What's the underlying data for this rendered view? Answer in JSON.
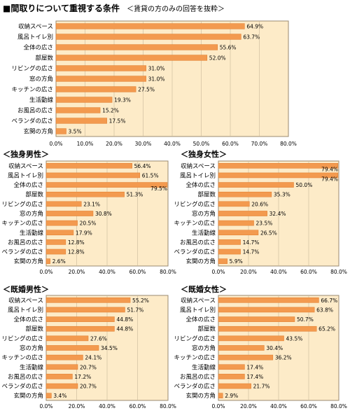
{
  "header": {
    "title": "■間取りについて重視する条件",
    "subtitle": "＜賃貸の方のみの回答を抜粋＞"
  },
  "colors": {
    "plot_background": "#fdebc8",
    "bar": "#f39a4f",
    "bar_stroke": "#e07a2a",
    "grid": "#c8b89a"
  },
  "chart_data": [
    {
      "type": "bar",
      "orientation": "horizontal",
      "title": "",
      "categories": [
        "収納スペース",
        "風呂トイレ別",
        "全体の広さ",
        "部屋数",
        "リビングの広さ",
        "窓の方角",
        "キッチンの広さ",
        "生活動線",
        "お風呂の広さ",
        "ベランダの広さ",
        "玄関の方角"
      ],
      "values": [
        64.9,
        63.7,
        55.6,
        52.0,
        31.0,
        31.0,
        27.5,
        19.3,
        15.2,
        17.5,
        3.5
      ],
      "value_labels": [
        "64.9%",
        "63.7%",
        "55.6%",
        "52.0%",
        "31.0%",
        "31.0%",
        "27.5%",
        "19.3%",
        "15.2%",
        "17.5%",
        "3.5%"
      ],
      "xlim": [
        0,
        80
      ],
      "ticks": [
        "0.0%",
        "10.0%",
        "20.0%",
        "30.0%",
        "40.0%",
        "50.0%",
        "60.0%",
        "70.0%",
        "80.0%"
      ],
      "grid": true
    },
    {
      "type": "bar",
      "orientation": "horizontal",
      "title": "＜独身男性＞",
      "categories": [
        "収納スペース",
        "風呂トイレ別",
        "全体の広さ",
        "部屋数",
        "リビングの広さ",
        "窓の方角",
        "キッチンの広さ",
        "生活動線",
        "お風呂の広さ",
        "ベランダの広さ",
        "玄関の方角"
      ],
      "values": [
        56.4,
        61.5,
        79.5,
        51.3,
        23.1,
        30.8,
        20.5,
        17.9,
        12.8,
        12.8,
        2.6
      ],
      "value_labels": [
        "56.4%",
        "61.5%",
        "79.5%",
        "51.3%",
        "23.1%",
        "30.8%",
        "20.5%",
        "17.9%",
        "12.8%",
        "12.8%",
        "2.6%"
      ],
      "xlim": [
        0,
        80
      ],
      "ticks": [
        "0.0%",
        "20.0%",
        "40.0%",
        "60.0%",
        "80.0%"
      ],
      "grid": true
    },
    {
      "type": "bar",
      "orientation": "horizontal",
      "title": "＜独身女性＞",
      "categories": [
        "収納スペース",
        "風呂トイレ別",
        "全体の広さ",
        "部屋数",
        "リビングの広さ",
        "窓の方角",
        "キッチンの広さ",
        "生活動線",
        "お風呂の広さ",
        "ベランダの広さ",
        "玄関の方角"
      ],
      "values": [
        79.4,
        79.4,
        50.0,
        35.3,
        20.6,
        32.4,
        23.5,
        26.5,
        14.7,
        14.7,
        5.9
      ],
      "value_labels": [
        "79.4%",
        "79.4%",
        "50.0%",
        "35.3%",
        "20.6%",
        "32.4%",
        "23.5%",
        "26.5%",
        "14.7%",
        "14.7%",
        "5.9%"
      ],
      "xlim": [
        0,
        80
      ],
      "ticks": [
        "0.0%",
        "20.0%",
        "40.0%",
        "60.0%",
        "80.0%"
      ],
      "grid": true
    },
    {
      "type": "bar",
      "orientation": "horizontal",
      "title": "＜既婚男性＞",
      "categories": [
        "収納スペース",
        "風呂トイレ別",
        "全体の広さ",
        "部屋数",
        "リビングの広さ",
        "窓の方角",
        "キッチンの広さ",
        "生活動線",
        "お風呂の広さ",
        "ベランダの広さ",
        "玄関の方角"
      ],
      "values": [
        55.2,
        51.7,
        44.8,
        44.8,
        27.6,
        34.5,
        24.1,
        20.7,
        17.2,
        20.7,
        3.4
      ],
      "value_labels": [
        "55.2%",
        "51.7%",
        "44.8%",
        "44.8%",
        "27.6%",
        "34.5%",
        "24.1%",
        "20.7%",
        "17.2%",
        "20.7%",
        "3.4%"
      ],
      "xlim": [
        0,
        80
      ],
      "ticks": [
        "0.0%",
        "20.0%",
        "40.0%",
        "60.0%",
        "80.0%"
      ],
      "grid": true
    },
    {
      "type": "bar",
      "orientation": "horizontal",
      "title": "＜既婚女性＞",
      "categories": [
        "収納スペース",
        "風呂トイレ別",
        "全体の広さ",
        "部屋数",
        "リビングの広さ",
        "窓の方角",
        "キッチンの広さ",
        "生活動線",
        "お風呂の広さ",
        "ベランダの広さ",
        "玄関の方角"
      ],
      "values": [
        66.7,
        63.8,
        50.7,
        65.2,
        43.5,
        30.4,
        36.2,
        17.4,
        17.4,
        21.7,
        2.9
      ],
      "value_labels": [
        "66.7%",
        "63.8%",
        "50.7%",
        "65.2%",
        "43.5%",
        "30.4%",
        "36.2%",
        "17.4%",
        "17.4%",
        "21.7%",
        "2.9%"
      ],
      "xlim": [
        0,
        80
      ],
      "ticks": [
        "0.0%",
        "20.0%",
        "40.0%",
        "60.0%",
        "80.0%"
      ],
      "grid": true
    }
  ]
}
